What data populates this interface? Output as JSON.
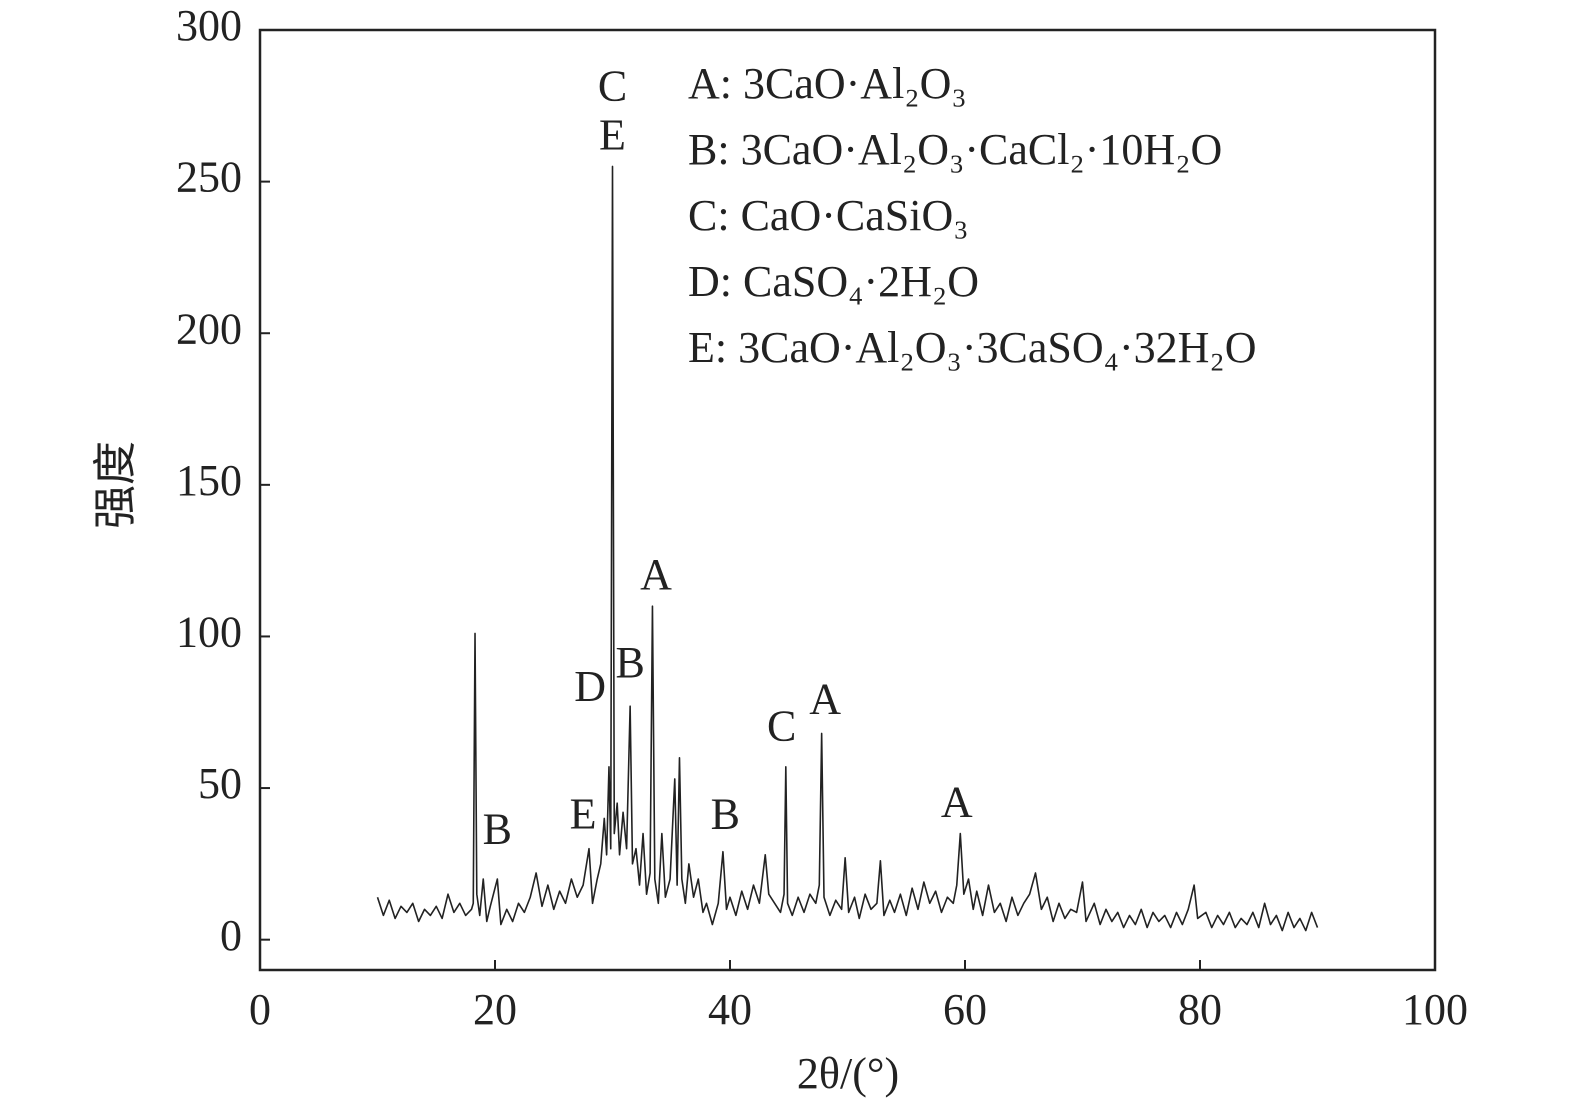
{
  "chart_data": {
    "type": "line",
    "x_label": "2θ/(°)",
    "y_label": "强度",
    "xlim": [
      0,
      100
    ],
    "xticks": [
      0,
      20,
      40,
      60,
      80,
      100
    ],
    "ylim": [
      -10,
      300
    ],
    "yticks": [
      0,
      50,
      100,
      150,
      200,
      250,
      300
    ],
    "color": "#222222",
    "x": [
      10,
      10.5,
      11,
      11.5,
      12,
      12.5,
      13,
      13.5,
      14,
      14.5,
      15,
      15.5,
      16,
      16.5,
      17,
      17.5,
      18,
      18.15,
      18.3,
      18.45,
      18.7,
      19,
      19.3,
      19.6,
      20.2,
      20.5,
      21,
      21.5,
      22,
      22.5,
      23,
      23.5,
      24,
      24.5,
      25,
      25.5,
      26,
      26.5,
      27,
      27.5,
      28,
      28.3,
      28.7,
      29,
      29.3,
      29.5,
      29.7,
      29.85,
      30,
      30.15,
      30.4,
      30.6,
      30.9,
      31.2,
      31.5,
      31.7,
      32,
      32.3,
      32.6,
      32.9,
      33.2,
      33.4,
      33.6,
      33.9,
      34.2,
      34.5,
      34.9,
      35.3,
      35.5,
      35.7,
      35.9,
      36.2,
      36.5,
      36.9,
      37.3,
      37.7,
      38,
      38.5,
      39,
      39.4,
      39.7,
      40,
      40.5,
      41,
      41.5,
      42,
      42.5,
      43,
      43.3,
      43.8,
      44.3,
      44.6,
      44.75,
      44.9,
      45.3,
      45.8,
      46.3,
      46.8,
      47.3,
      47.6,
      47.8,
      48,
      48.5,
      49,
      49.5,
      49.8,
      50.1,
      50.6,
      51,
      51.5,
      52,
      52.5,
      52.8,
      53.1,
      53.6,
      54,
      54.5,
      55,
      55.5,
      56,
      56.5,
      57,
      57.5,
      58,
      58.5,
      59,
      59.3,
      59.6,
      59.9,
      60.3,
      60.7,
      61,
      61.5,
      62,
      62.5,
      63,
      63.5,
      64,
      64.5,
      65,
      65.5,
      66,
      66.5,
      67,
      67.5,
      68,
      68.5,
      69,
      69.5,
      70,
      70.3,
      71,
      71.5,
      72,
      72.5,
      73,
      73.5,
      74,
      74.5,
      75,
      75.5,
      76,
      76.5,
      77,
      77.5,
      78,
      78.5,
      79,
      79.5,
      79.8,
      80.5,
      81,
      81.5,
      82,
      82.5,
      83,
      83.5,
      84,
      84.5,
      85,
      85.5,
      86,
      86.5,
      87,
      87.5,
      88,
      88.5,
      89,
      89.5,
      90
    ],
    "values": [
      14,
      8,
      13,
      7,
      11,
      9,
      12,
      6,
      10,
      8,
      11,
      7,
      15,
      9,
      12,
      8,
      10,
      12,
      101,
      15,
      8,
      20,
      6,
      11,
      20,
      5,
      10,
      6,
      12,
      9,
      14,
      22,
      11,
      18,
      10,
      16,
      12,
      20,
      14,
      18,
      30,
      12,
      20,
      25,
      40,
      28,
      57,
      30,
      255,
      35,
      45,
      28,
      42,
      30,
      77,
      25,
      30,
      18,
      35,
      15,
      22,
      110,
      20,
      12,
      35,
      14,
      20,
      53,
      18,
      60,
      20,
      12,
      25,
      14,
      20,
      9,
      12,
      5,
      12,
      29,
      10,
      14,
      8,
      16,
      10,
      18,
      12,
      28,
      15,
      12,
      9,
      15,
      57,
      12,
      8,
      14,
      9,
      15,
      12,
      18,
      68,
      14,
      8,
      13,
      10,
      27,
      9,
      14,
      7,
      15,
      10,
      12,
      26,
      8,
      13,
      9,
      15,
      8,
      17,
      10,
      19,
      12,
      16,
      9,
      14,
      12,
      18,
      35,
      15,
      20,
      10,
      16,
      8,
      18,
      9,
      12,
      6,
      14,
      8,
      12,
      15,
      22,
      10,
      14,
      6,
      12,
      7,
      10,
      9,
      19,
      6,
      12,
      5,
      10,
      6,
      9,
      4,
      8,
      5,
      10,
      4,
      9,
      6,
      8,
      4,
      9,
      5,
      10,
      18,
      7,
      9,
      4,
      8,
      5,
      9,
      4,
      7,
      5,
      9,
      4,
      12,
      5,
      8,
      3,
      9,
      4,
      7,
      3,
      9,
      4
    ],
    "annotations": [
      {
        "text": "C",
        "x": 30,
        "y": 280
      },
      {
        "text": "E",
        "x": 30,
        "y": 264
      },
      {
        "text": "B",
        "x": 20.2,
        "y": 35
      },
      {
        "text": "E",
        "x": 27.5,
        "y": 40
      },
      {
        "text": "D",
        "x": 28.1,
        "y": 82
      },
      {
        "text": "B",
        "x": 31.5,
        "y": 90
      },
      {
        "text": "A",
        "x": 33.7,
        "y": 119
      },
      {
        "text": "B",
        "x": 39.6,
        "y": 40
      },
      {
        "text": "C",
        "x": 44.4,
        "y": 69
      },
      {
        "text": "A",
        "x": 48.1,
        "y": 78
      },
      {
        "text": "A",
        "x": 59.3,
        "y": 44
      }
    ],
    "legend_text": [
      "A: 3CaO·Al₂O₃",
      "B: 3CaO·Al₂O₃·CaCl₂·10H₂O",
      "C: CaO·CaSiO₃",
      "D: CaSO₄·2H₂O",
      "E: 3CaO·Al₂O₃·3CaSO₄·32H₂O"
    ]
  }
}
